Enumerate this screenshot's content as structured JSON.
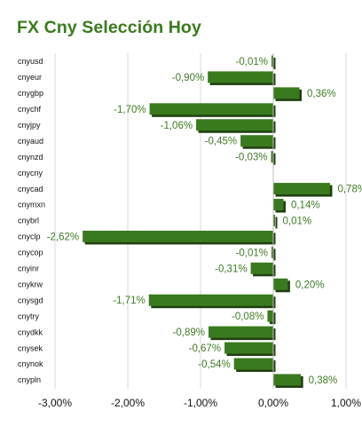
{
  "chart_data": {
    "type": "bar",
    "orientation": "horizontal",
    "title": "FX Cny Selección Hoy",
    "categories": [
      "cnyusd",
      "cnyeur",
      "cnygbp",
      "cnychf",
      "cnyjpy",
      "cnyaud",
      "cnynzd",
      "cnycny",
      "cnycad",
      "cnymxn",
      "cnybrl",
      "cnyclp",
      "cnycop",
      "cnyinr",
      "cnykrw",
      "cnysgd",
      "cnytry",
      "cnydkk",
      "cnysek",
      "cnynok",
      "cnypln"
    ],
    "values": [
      -0.01,
      -0.9,
      0.36,
      -1.7,
      -1.06,
      -0.45,
      -0.03,
      null,
      0.78,
      0.14,
      0.01,
      -2.62,
      -0.01,
      -0.31,
      0.2,
      -1.71,
      -0.08,
      -0.89,
      -0.67,
      -0.54,
      0.38
    ],
    "value_labels": [
      "-0,01%",
      "-0,90%",
      "0,36%",
      "-1,70%",
      "-1,06%",
      "-0,45%",
      "-0,03%",
      "",
      "0,78%",
      "0,14%",
      "0,01%",
      "-2,62%",
      "-0,01%",
      "-0,31%",
      "0,20%",
      "-1,71%",
      "-0,08%",
      "-0,89%",
      "-0,67%",
      "-0,54%",
      "0,38%"
    ],
    "x_ticks": [
      -3,
      -2,
      -1,
      0,
      1
    ],
    "x_tick_labels": [
      "-3,00%",
      "-2,00%",
      "-1,00%",
      "0,00%",
      "1,00%"
    ],
    "xlim": [
      -3,
      1
    ],
    "grid": true,
    "bar_color": "#3a7a1e",
    "label_color": "#3f7a24"
  }
}
